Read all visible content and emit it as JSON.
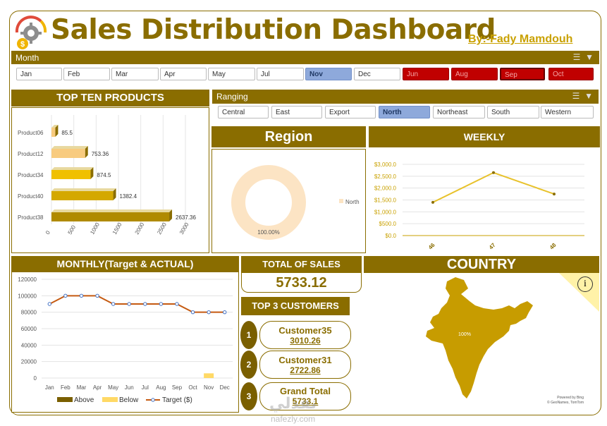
{
  "header": {
    "title": "Sales Distribution Dashboard",
    "byline": "By:-Fady Mamdouh"
  },
  "month_slicer": {
    "label": "Month",
    "items": [
      {
        "label": "Jan",
        "state": "normal"
      },
      {
        "label": "Feb",
        "state": "normal"
      },
      {
        "label": "Mar",
        "state": "normal"
      },
      {
        "label": "Apr",
        "state": "normal"
      },
      {
        "label": "May",
        "state": "normal"
      },
      {
        "label": "Jul",
        "state": "normal"
      },
      {
        "label": "Nov",
        "state": "selected"
      },
      {
        "label": "Dec",
        "state": "normal"
      },
      {
        "label": "Jun",
        "state": "nodata"
      },
      {
        "label": "Aug",
        "state": "nodata"
      },
      {
        "label": "Sep",
        "state": "nodata-focused"
      },
      {
        "label": "Oct",
        "state": "nodata"
      }
    ]
  },
  "region_slicer": {
    "label": "Ranging",
    "items": [
      {
        "label": "Central",
        "state": "normal"
      },
      {
        "label": "East",
        "state": "normal"
      },
      {
        "label": "Export",
        "state": "normal"
      },
      {
        "label": "North",
        "state": "selected"
      },
      {
        "label": "Northeast",
        "state": "normal"
      },
      {
        "label": "South",
        "state": "normal"
      },
      {
        "label": "Western",
        "state": "normal"
      }
    ]
  },
  "panels": {
    "top_products": "TOP TEN PRODUCTS",
    "region": "Region",
    "weekly": "WEEKLY",
    "monthly": "MONTHLY(Target & ACTUAL)",
    "total_sales_title": "TOTAL OF SALES",
    "total_sales_value": "5733.12",
    "top3_title": "TOP 3 CUSTOMERS",
    "country": "COUNTRY"
  },
  "top_customers": [
    {
      "rank": "1",
      "name": "Customer35",
      "value": "3010.26"
    },
    {
      "rank": "2",
      "name": "Customer31",
      "value": "2722.86"
    },
    {
      "rank": "3",
      "name": "Grand Total",
      "value": "5733.1"
    }
  ],
  "map": {
    "label": "100%",
    "info_icon": "i",
    "credit_line1": "Powered by Bing",
    "credit_line2": "© GeoNames, TomTom"
  },
  "watermark": {
    "arabic": "نفذلي",
    "latin": "nafezly.com"
  },
  "colors": {
    "accent": "#8a6d00",
    "gold": "#c9a100",
    "bar_light": "#f8cb7f",
    "donut": "#fce4c4",
    "line": "#e8c22c",
    "target_line": "#4472c4",
    "actual_line": "#c55a11"
  },
  "chart_data": [
    {
      "id": "products",
      "type": "bar",
      "orientation": "horizontal",
      "categories": [
        "Product06",
        "Product12",
        "Product34",
        "Product40",
        "Product38"
      ],
      "values": [
        85.5,
        753.36,
        874.5,
        1382.4,
        2637.36
      ],
      "value_labels": [
        "85.5",
        "753.36",
        "874.5",
        "1382.4",
        "2637.36"
      ],
      "xlim": [
        0,
        3000
      ],
      "xticks": [
        "0",
        "500",
        "1000",
        "1500",
        "2000",
        "2500",
        "3000"
      ]
    },
    {
      "id": "region",
      "type": "pie",
      "style": "donut",
      "labels": [
        "North"
      ],
      "values": [
        100
      ],
      "data_label": "100.00%",
      "legend": "right"
    },
    {
      "id": "weekly",
      "type": "line",
      "x": [
        "46",
        "47",
        "48"
      ],
      "values": [
        1400,
        2650,
        1750
      ],
      "ylim": [
        0,
        3000
      ],
      "yticks": [
        "$0.0",
        "$500.0",
        "$1,000.0",
        "$1,500.0",
        "$2,000.0",
        "$2,500.0",
        "$3,000.0"
      ]
    },
    {
      "id": "monthly",
      "type": "bar",
      "categories": [
        "Jan",
        "Feb",
        "Mar",
        "Apr",
        "May",
        "Jun",
        "Jul",
        "Aug",
        "Sep",
        "Oct",
        "Nov",
        "Dec"
      ],
      "series": [
        {
          "name": "Above",
          "values": [
            0,
            0,
            0,
            0,
            0,
            0,
            0,
            0,
            0,
            0,
            0,
            0
          ]
        },
        {
          "name": "Below",
          "values": [
            0,
            0,
            0,
            0,
            0,
            0,
            0,
            0,
            0,
            0,
            5733.12,
            0
          ]
        },
        {
          "name": "Target ($)",
          "type": "line",
          "values": [
            90000,
            100000,
            100000,
            100000,
            90000,
            90000,
            90000,
            90000,
            90000,
            80000,
            80000,
            80000
          ]
        }
      ],
      "ylim": [
        0,
        120000
      ],
      "yticks": [
        "0",
        "20000",
        "40000",
        "60000",
        "80000",
        "100000",
        "120000"
      ],
      "legend": "bottom"
    }
  ]
}
